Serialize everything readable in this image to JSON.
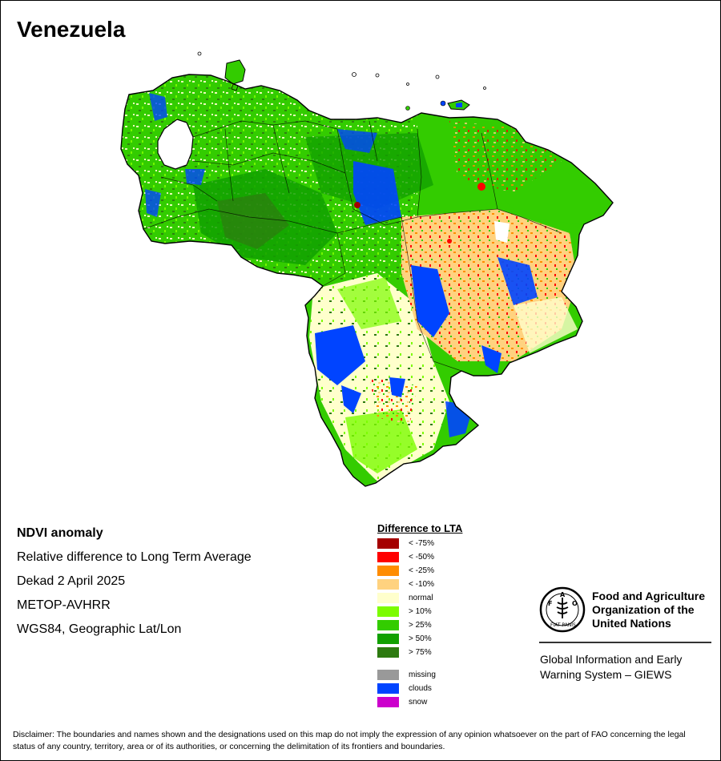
{
  "map": {
    "title": "Venezuela"
  },
  "info": {
    "lines": [
      "NDVI anomaly",
      "Relative difference to Long Term Average",
      "Dekad 2 April 2025",
      "METOP-AVHRR",
      "WGS84, Geographic Lat/Lon"
    ]
  },
  "legend": {
    "title": "Difference to LTA",
    "items": [
      {
        "label": "< -75%",
        "color": "#a50000"
      },
      {
        "label": "< -50%",
        "color": "#ff0000"
      },
      {
        "label": "< -25%",
        "color": "#ff8c00"
      },
      {
        "label": "< -10%",
        "color": "#ffd27f"
      },
      {
        "label": "normal",
        "color": "#ffffcc"
      },
      {
        "label": "> 10%",
        "color": "#7cfc00"
      },
      {
        "label": "> 25%",
        "color": "#33cc00"
      },
      {
        "label": "> 50%",
        "color": "#11a000"
      },
      {
        "label": "> 75%",
        "color": "#2d7a10"
      }
    ],
    "special_items": [
      {
        "label": "missing",
        "color": "#999999"
      },
      {
        "label": "clouds",
        "color": "#0044ff"
      },
      {
        "label": "snow",
        "color": "#cc00cc"
      }
    ]
  },
  "organization": {
    "name_lines": [
      "Food and Agriculture",
      "Organization of the",
      "United Nations"
    ],
    "emblem_letters": "FAO",
    "emblem_motto": "FIAT PANIS",
    "system_lines": [
      "Global Information and Early",
      "Warning System – GIEWS"
    ]
  },
  "disclaimer": "Disclaimer: The boundaries and names shown and the designations used on this map do not imply the expression of any opinion whatsoever on the part of FAO concerning the legal status of any country, territory, area or of its authorities, or concerning the delimitation of its frontiers and boundaries."
}
